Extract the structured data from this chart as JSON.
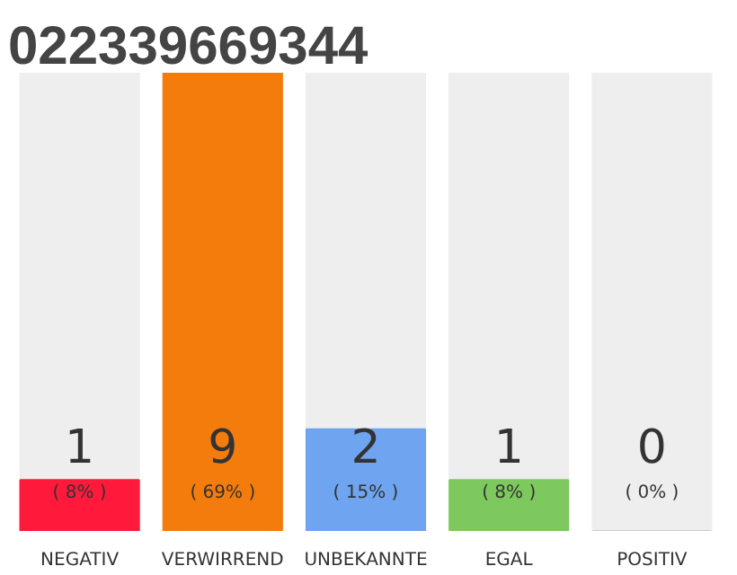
{
  "chart_data": {
    "type": "bar",
    "title": "022339669344",
    "categories": [
      "NEGATIV",
      "VERWIRREND",
      "UNBEKANNTE",
      "EGAL",
      "POSITIV"
    ],
    "values": [
      1,
      9,
      2,
      1,
      0
    ],
    "colors": [
      "#ff1a3c",
      "#f47c0c",
      "#6ea4f0",
      "#7dc95e",
      "#cccccc"
    ],
    "data_labels": true,
    "annotations": [
      "( 8% )",
      "( 69% )",
      "( 15% )",
      "( 8% )",
      "( 0% )"
    ],
    "grid": false
  }
}
